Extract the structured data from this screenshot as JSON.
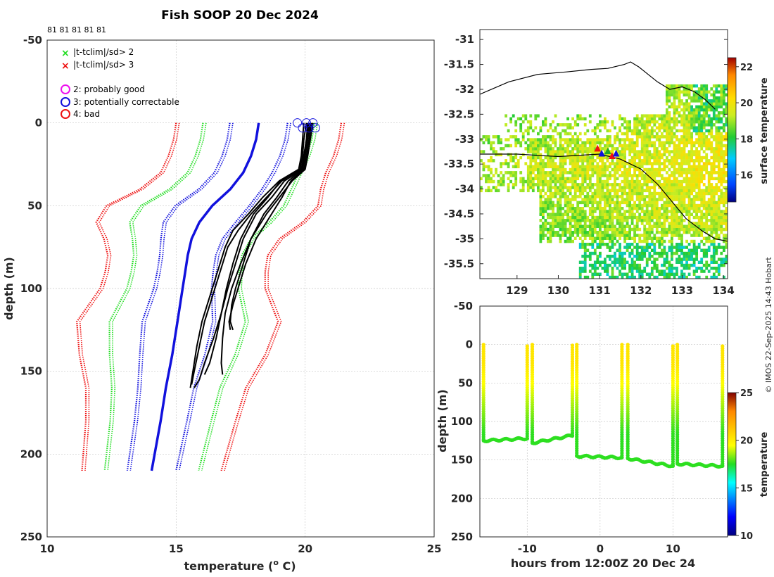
{
  "chart_data": {
    "title": "Fish SOOP 20 Dec 2024",
    "credit": "© IMOS 22-Sep-2025 14:43 Hobart",
    "profile_plot": {
      "type": "line",
      "xlabel": "temperature (° C)",
      "xlabel_parts": [
        "temperature (",
        "o",
        " C)"
      ],
      "ylabel": "depth (m)",
      "xlim": [
        10,
        25
      ],
      "ylim": [
        -50,
        250
      ],
      "xticks": [
        10,
        15,
        20,
        25
      ],
      "yticks": [
        -50,
        0,
        50,
        100,
        150,
        200,
        250
      ],
      "grid": true,
      "top_annotation": "81 81 81 81 81",
      "legend": [
        {
          "label": "|t-tclim|/sd> 2",
          "marker": "x",
          "color": "#22dd22"
        },
        {
          "label": "|t-tclim|/sd> 3",
          "marker": "x",
          "color": "#ee1111"
        },
        {
          "label": "2: probably good",
          "marker": "circle",
          "color": "#ee11ee"
        },
        {
          "label": "3: potentially correctable",
          "marker": "circle",
          "color": "#1111dd"
        },
        {
          "label": "4: bad",
          "marker": "circle",
          "color": "#ee1111"
        }
      ],
      "climatology": {
        "depth": [
          0,
          10,
          20,
          30,
          40,
          50,
          60,
          70,
          80,
          90,
          100,
          120,
          140,
          160,
          180,
          210
        ],
        "mean": [
          18.2,
          18.1,
          17.9,
          17.6,
          17.1,
          16.4,
          15.9,
          15.6,
          15.45,
          15.35,
          15.25,
          15.05,
          14.85,
          14.6,
          14.4,
          14.05
        ],
        "sd": [
          1.6,
          1.6,
          1.6,
          1.6,
          1.75,
          2.05,
          2.0,
          1.7,
          1.55,
          1.55,
          1.6,
          1.95,
          1.8,
          1.55,
          1.45,
          1.35
        ]
      },
      "profiles": [
        {
          "name": "profile-1",
          "depth": [
            0,
            10,
            20,
            28,
            35,
            45,
            55,
            70,
            85,
            100,
            115,
            130,
            145,
            155,
            160
          ],
          "temp": [
            20.15,
            20.05,
            19.95,
            19.9,
            19.2,
            18.7,
            18.1,
            17.6,
            17.3,
            17.0,
            16.75,
            16.45,
            16.1,
            15.9,
            15.7
          ]
        },
        {
          "name": "profile-2",
          "depth": [
            0,
            10,
            20,
            28,
            35,
            45,
            55,
            70,
            85,
            100,
            115,
            130,
            145,
            152
          ],
          "temp": [
            20.1,
            20.05,
            19.95,
            19.85,
            19.05,
            18.55,
            18.0,
            17.5,
            17.2,
            16.95,
            16.75,
            16.55,
            16.3,
            16.1
          ]
        },
        {
          "name": "profile-3",
          "depth": [
            0,
            10,
            20,
            28,
            35,
            45,
            55,
            70,
            85,
            100,
            115,
            130,
            145,
            152
          ],
          "temp": [
            20.2,
            20.1,
            20.0,
            19.9,
            19.35,
            18.9,
            18.4,
            17.9,
            17.5,
            17.15,
            16.9,
            16.8,
            16.75,
            16.8
          ]
        },
        {
          "name": "profile-4",
          "depth": [
            0,
            10,
            20,
            28,
            35,
            45,
            55,
            70,
            85,
            100,
            110,
            120,
            125
          ],
          "temp": [
            20.3,
            20.2,
            20.1,
            20.0,
            19.5,
            19.0,
            18.5,
            17.9,
            17.6,
            17.3,
            17.15,
            17.1,
            17.2
          ]
        },
        {
          "name": "profile-5",
          "depth": [
            0,
            10,
            20,
            28,
            35,
            45,
            55,
            70,
            85,
            100,
            110,
            120,
            125
          ],
          "temp": [
            20.25,
            20.15,
            20.05,
            19.95,
            19.45,
            19.1,
            18.7,
            18.1,
            17.7,
            17.4,
            17.2,
            17.05,
            17.1
          ]
        },
        {
          "name": "profile-6",
          "depth": [
            0,
            10,
            20,
            28,
            35,
            45,
            55,
            65,
            75,
            90,
            105,
            120,
            135,
            150,
            158
          ],
          "temp": [
            20.05,
            19.95,
            19.9,
            19.8,
            19.1,
            18.5,
            17.9,
            17.4,
            17.0,
            16.7,
            16.4,
            16.1,
            15.9,
            15.7,
            15.6
          ]
        },
        {
          "name": "profile-7",
          "depth": [
            0,
            10,
            20,
            28,
            35,
            45,
            55,
            65,
            75,
            90,
            105,
            120,
            135,
            150,
            160
          ],
          "temp": [
            19.95,
            19.9,
            19.85,
            19.75,
            19.0,
            18.35,
            17.8,
            17.2,
            16.9,
            16.6,
            16.3,
            16.0,
            15.8,
            15.65,
            15.55
          ]
        }
      ],
      "profile_color": "#000000",
      "surface_flags": {
        "flag": "3: potentially correctable",
        "temps": [
          19.7,
          19.9,
          20.05,
          20.15,
          20.3,
          20.4
        ]
      }
    },
    "map_plot": {
      "type": "heatmap",
      "xlim": [
        128.1,
        134.1
      ],
      "ylim": [
        -35.8,
        -30.8
      ],
      "xticks": [
        129,
        130,
        131,
        132,
        133,
        134
      ],
      "yticks": [
        -31,
        -31.5,
        -32,
        -32.5,
        -33,
        -33.5,
        -34,
        -34.5,
        -35,
        -35.5
      ],
      "colorbar_label": "surface temperature",
      "colorbar_range": [
        14.5,
        22.5
      ],
      "colorbar_ticks": [
        16,
        18,
        20,
        22
      ],
      "coastline_1": {
        "lon": [
          128.1,
          128.8,
          129.5,
          130.2,
          130.8,
          131.2,
          131.6,
          131.75,
          131.95,
          132.1,
          132.4,
          132.7,
          133.0,
          133.3,
          133.55,
          133.8
        ],
        "lat": [
          -32.1,
          -31.85,
          -31.7,
          -31.65,
          -31.6,
          -31.58,
          -31.5,
          -31.45,
          -31.55,
          -31.65,
          -31.85,
          -32.0,
          -31.95,
          -32.05,
          -32.2,
          -32.4
        ]
      },
      "coastline_2": {
        "lon": [
          128.1,
          129.0,
          130.0,
          131.0,
          131.5,
          132.0,
          132.4,
          132.8,
          133.1,
          133.5,
          133.8,
          134.1
        ],
        "lat": [
          -33.3,
          -33.3,
          -33.35,
          -33.3,
          -33.4,
          -33.6,
          -33.9,
          -34.3,
          -34.6,
          -34.85,
          -35.0,
          -35.05
        ],
        "color": "#000000"
      },
      "drop_markers": {
        "lon": [
          130.95,
          131.05,
          131.2,
          131.3,
          131.4
        ],
        "lat": [
          -33.2,
          -33.3,
          -33.25,
          -33.35,
          -33.3
        ],
        "colors": [
          "#ee1111",
          "#1111dd",
          "#22aa22",
          "#ee1111",
          "#1111dd"
        ]
      }
    },
    "time_plot": {
      "type": "scatter",
      "xlabel": "hours from 12:00Z 20 Dec 24",
      "ylabel": "depth (m)",
      "xlim": [
        -16.5,
        17.5
      ],
      "ylim": [
        -50,
        250
      ],
      "xticks": [
        -10,
        0,
        10
      ],
      "yticks": [
        -50,
        0,
        50,
        100,
        150,
        200,
        250
      ],
      "grid": true,
      "colorbar_label": "temperature",
      "colorbar_range": [
        10,
        25
      ],
      "colorbar_ticks": [
        10,
        15,
        20,
        25
      ],
      "casts": [
        {
          "start_h": -16.0,
          "end_h": -10.0,
          "start_depth": 125,
          "end_depth": 122
        },
        {
          "start_h": -9.3,
          "end_h": -3.8,
          "start_depth": 128,
          "end_depth": 118
        },
        {
          "start_h": -3.2,
          "end_h": 3.0,
          "start_depth": 145,
          "end_depth": 147
        },
        {
          "start_h": 3.8,
          "end_h": 10.0,
          "start_depth": 148,
          "end_depth": 158
        },
        {
          "start_h": 10.6,
          "end_h": 16.8,
          "start_depth": 155,
          "end_depth": 158
        }
      ]
    }
  }
}
